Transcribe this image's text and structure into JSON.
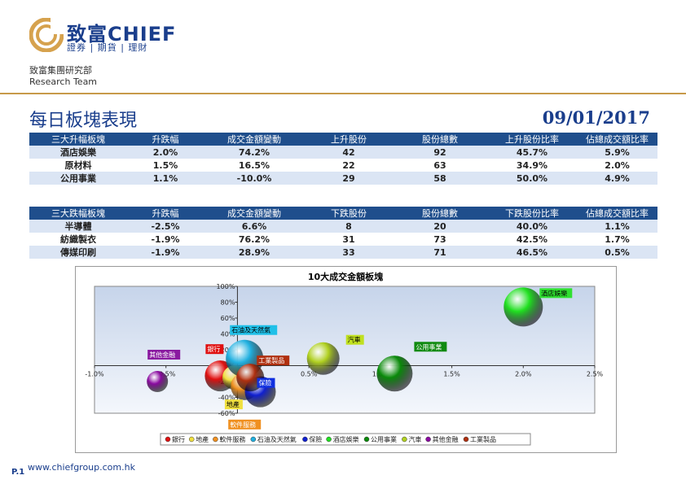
{
  "brand": {
    "name": "致富CHIEF",
    "tagline": "證券 | 期貨 | 理財"
  },
  "dept": {
    "cn": "致富集團研究部",
    "en": "Research Team"
  },
  "page": {
    "title": "每日板塊表現",
    "date": "09/01/2017"
  },
  "up_table": {
    "headers": [
      "三大升幅板塊",
      "升跌幅",
      "成交金額變動",
      "上升股份",
      "股份總數",
      "上升股份比率",
      "佔總成交額比率"
    ],
    "rows": [
      [
        "酒店娛樂",
        "2.0%",
        "74.2%",
        "42",
        "92",
        "45.7%",
        "5.9%"
      ],
      [
        "原材料",
        "1.5%",
        "16.5%",
        "22",
        "63",
        "34.9%",
        "2.0%"
      ],
      [
        "公用事業",
        "1.1%",
        "-10.0%",
        "29",
        "58",
        "50.0%",
        "4.9%"
      ]
    ]
  },
  "down_table": {
    "headers": [
      "三大跌幅板塊",
      "升跌幅",
      "成交金額變動",
      "下跌股份",
      "股份總數",
      "下跌股份比率",
      "佔總成交額比率"
    ],
    "rows": [
      [
        "半導體",
        "-2.5%",
        "6.6%",
        "8",
        "20",
        "40.0%",
        "1.1%"
      ],
      [
        "紡織製衣",
        "-1.9%",
        "76.2%",
        "31",
        "73",
        "42.5%",
        "1.7%"
      ],
      [
        "傳媒印刷",
        "-1.9%",
        "28.9%",
        "33",
        "71",
        "46.5%",
        "0.5%"
      ]
    ]
  },
  "chart_data": {
    "type": "scatter",
    "title": "10大成交金額板塊",
    "xlim": [
      -1.0,
      2.5
    ],
    "ylim": [
      -60,
      100
    ],
    "xticks": [
      "-1.0%",
      "-0.5%",
      "0.0%",
      "0.5%",
      "1.0%",
      "1.5%",
      "2.0%",
      "2.5%"
    ],
    "yticks": [
      "100%",
      "80%",
      "60%",
      "40%",
      "20%",
      "0%",
      "-20%",
      "-40%",
      "-60%"
    ],
    "legend_position": "bottom",
    "series": [
      {
        "name": "銀行",
        "x": -0.12,
        "y": -13,
        "size": 38,
        "color": "#e01010"
      },
      {
        "name": "地產",
        "x": -0.02,
        "y": -15,
        "size": 30,
        "color": "#f0e040"
      },
      {
        "name": "軟件服務",
        "x": 0.05,
        "y": -26,
        "size": 34,
        "color": "#f09020"
      },
      {
        "name": "石油及天然氣",
        "x": 0.05,
        "y": 9,
        "size": 46,
        "color": "#20b0e0"
      },
      {
        "name": "保險",
        "x": 0.16,
        "y": -33,
        "size": 38,
        "color": "#1020d0"
      },
      {
        "name": "酒店娛樂",
        "x": 2.0,
        "y": 74,
        "size": 48,
        "color": "#20e020"
      },
      {
        "name": "公用事業",
        "x": 1.1,
        "y": -10,
        "size": 44,
        "color": "#0a8a0a"
      },
      {
        "name": "汽車",
        "x": 0.6,
        "y": 9,
        "size": 40,
        "color": "#b0d020"
      },
      {
        "name": "其他金融",
        "x": -0.56,
        "y": -20,
        "size": 26,
        "color": "#8a0aa0"
      },
      {
        "name": "工業製品",
        "x": 0.09,
        "y": -15,
        "size": 34,
        "color": "#b03010"
      }
    ],
    "label_colors": {
      "銀行": "#e01010",
      "地產": "#f0e040",
      "軟件服務": "#f09020",
      "石油及天然氣": "#20c0e8",
      "保險": "#1030e0",
      "酒店娛樂": "#30e030",
      "公用事業": "#108a10",
      "汽車": "#c0e020",
      "其他金融": "#8a1aa0",
      "工業製品": "#b03010"
    }
  },
  "footer": {
    "page": "P.1",
    "url": "www.chiefgroup.com.hk"
  }
}
